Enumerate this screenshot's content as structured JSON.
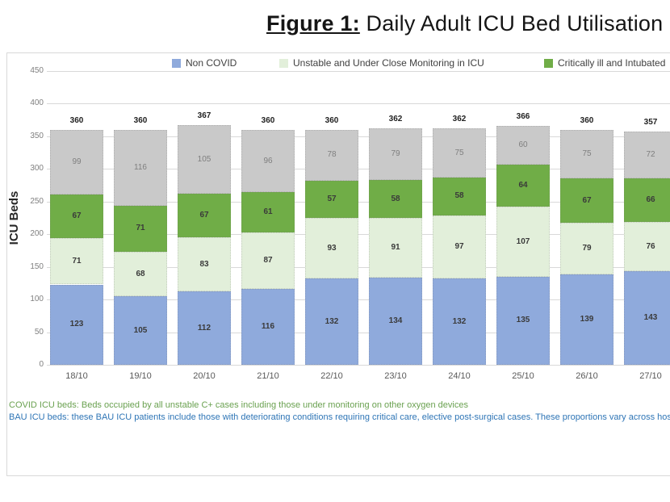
{
  "title": {
    "prefix": "Figure 1:",
    "text": " Daily Adult ICU Bed Utilisation"
  },
  "legend": [
    {
      "label": "Non COVID",
      "color": "#8FAADC"
    },
    {
      "label": "Unstable and Under Close Monitoring in ICU",
      "color": "#E2EFDA"
    },
    {
      "label": "Critically ill and Intubated",
      "color": "#70AD47"
    }
  ],
  "chart_data": {
    "type": "bar",
    "stacked": true,
    "title": "Figure 1: Daily Adult ICU Bed Utilisation",
    "categories": [
      "18/10",
      "19/10",
      "20/10",
      "21/10",
      "22/10",
      "23/10",
      "24/10",
      "25/10",
      "26/10",
      "27/10"
    ],
    "series": [
      {
        "name": "Non COVID",
        "color": "#8FAADC",
        "label_style": "dark",
        "values": [
          123,
          105,
          112,
          116,
          132,
          134,
          132,
          135,
          139,
          143
        ]
      },
      {
        "name": "Unstable and Under Close Monitoring in ICU",
        "color": "#E2EFDA",
        "label_style": "dark",
        "values": [
          71,
          68,
          83,
          87,
          93,
          91,
          97,
          107,
          79,
          76
        ]
      },
      {
        "name": "Critically ill and Intubated",
        "color": "#70AD47",
        "label_style": "dark",
        "values": [
          67,
          71,
          67,
          61,
          57,
          58,
          58,
          64,
          67,
          66
        ]
      },
      {
        "name": "",
        "color": "#C9C9C9",
        "label_style": "light",
        "values": [
          99,
          116,
          105,
          96,
          78,
          79,
          75,
          60,
          75,
          72
        ]
      }
    ],
    "totals": [
      360,
      360,
      367,
      360,
      360,
      362,
      362,
      366,
      360,
      357
    ],
    "xlabel": "",
    "ylabel": "ICU Beds",
    "ylim": [
      0,
      450
    ],
    "ytick_step": 50,
    "grid": true,
    "legend_position": "top"
  },
  "footnotes": [
    {
      "text": "COVID ICU beds: Beds occupied by all unstable C+ cases including those under monitoring on other oxygen devices",
      "color": "#6AA150"
    },
    {
      "text": "BAU ICU beds: these BAU ICU patients include those with deteriorating conditions requiring critical care, elective post-surgical cases. These proportions vary across hospitals",
      "color": "#2E75B6"
    }
  ],
  "colors": {
    "gridline": "#D9D9D9",
    "chart_border": "#D9D9D9",
    "y_tick_text": "#7F7F7F",
    "x_tick_text": "#595959",
    "legend_text": "#404040",
    "total_label_text": "#1F1F1F"
  }
}
